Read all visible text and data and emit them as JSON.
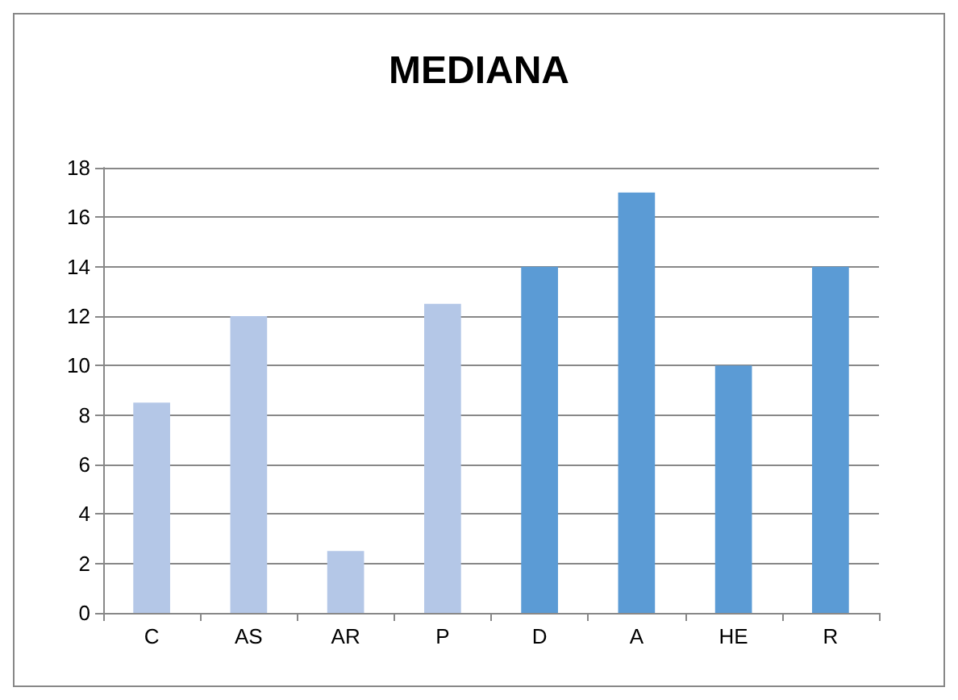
{
  "chart_data": {
    "type": "bar",
    "title": "MEDIANA",
    "categories": [
      "C",
      "AS",
      "AR",
      "P",
      "D",
      "A",
      "HE",
      "R"
    ],
    "values": [
      8.5,
      12,
      2.5,
      12.5,
      14,
      17,
      10,
      14
    ],
    "colors": [
      "#b4c7e7",
      "#b4c7e7",
      "#b4c7e7",
      "#b4c7e7",
      "#5b9bd5",
      "#5b9bd5",
      "#5b9bd5",
      "#5b9bd5"
    ],
    "ylim": [
      0,
      18
    ],
    "yticks": [
      0,
      2,
      4,
      6,
      8,
      10,
      12,
      14,
      16,
      18
    ],
    "grid": "y"
  }
}
